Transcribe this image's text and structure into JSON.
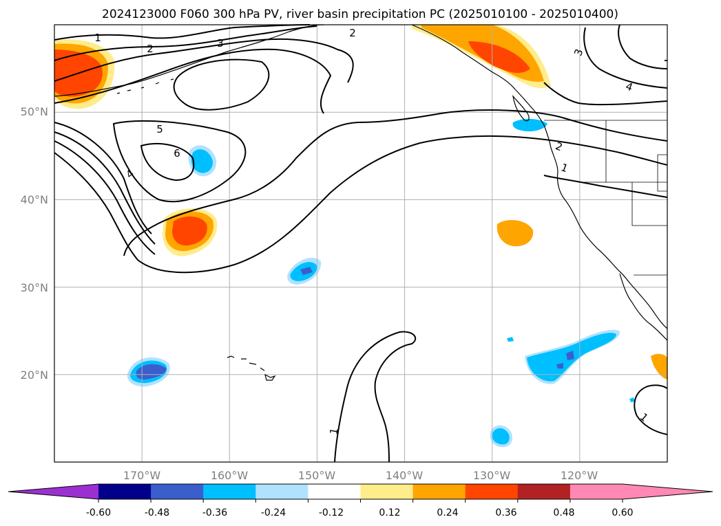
{
  "title": "2024123000 F060 300 hPa PV, river basin precipitation PC (2025010100 - 2025010400)",
  "map": {
    "lon_range": [
      -180,
      -110
    ],
    "lat_range": [
      10,
      60
    ],
    "lat_labels": [
      "50°N",
      "40°N",
      "30°N",
      "20°N"
    ],
    "lon_labels": [
      "170°W",
      "160°W",
      "150°W",
      "140°W",
      "130°W",
      "120°W"
    ],
    "gridlines": true,
    "contour_labels": [
      "1",
      "2",
      "3",
      "5",
      "6",
      "4",
      "2",
      "3",
      "4",
      "2",
      "1",
      "1",
      "1"
    ]
  },
  "colorbar": {
    "extend": "both",
    "colors": [
      "#9b30d0",
      "#00008b",
      "#3a5fcd",
      "#00bfff",
      "#b0e2ff",
      "#ffffff",
      "#ffec8b",
      "#ffa500",
      "#ff4500",
      "#b22222",
      "#ff89b4",
      "#ff89b4"
    ],
    "tick_labels": [
      "-0.60",
      "-0.48",
      "-0.36",
      "-0.24",
      "-0.12",
      "0.12",
      "0.24",
      "0.36",
      "0.48",
      "0.60"
    ]
  },
  "colors": {
    "pos_light": "#ffec8b",
    "pos_mid": "#ffa500",
    "pos_strong": "#ff4500",
    "neg_light": "#b0e2ff",
    "neg_mid": "#00bfff",
    "neg_strong": "#3a5fcd"
  }
}
